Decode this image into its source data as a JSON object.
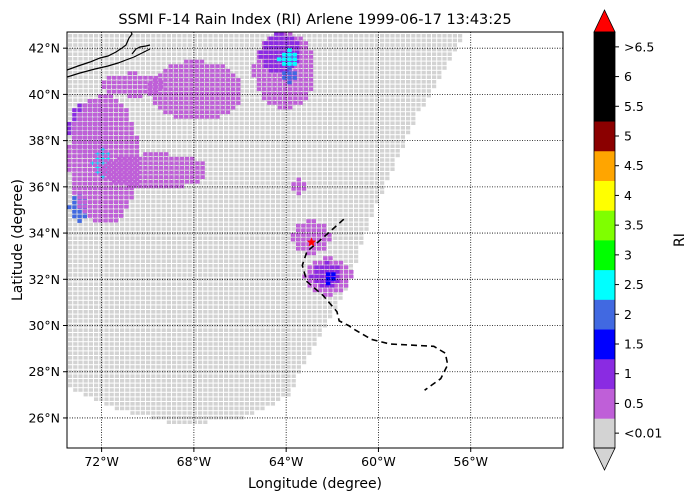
{
  "chart_data": {
    "type": "heatmap",
    "title": "SSMI F-14 Rain Index (RI) Arlene 1999-06-17 13:43:25",
    "xlabel": "Longitude (degree)",
    "ylabel": "Latitude (degree)",
    "xlim": [
      -73.5,
      -52
    ],
    "ylim": [
      24.7,
      42.7
    ],
    "grid": true,
    "x_ticks": [
      {
        "value": -72,
        "label": "72°W"
      },
      {
        "value": -68,
        "label": "68°W"
      },
      {
        "value": -64,
        "label": "64°W"
      },
      {
        "value": -60,
        "label": "60°W"
      },
      {
        "value": -56,
        "label": "56°W"
      }
    ],
    "y_ticks": [
      {
        "value": 26,
        "label": "26°N"
      },
      {
        "value": 28,
        "label": "28°N"
      },
      {
        "value": 30,
        "label": "30°N"
      },
      {
        "value": 32,
        "label": "32°N"
      },
      {
        "value": 34,
        "label": "34°N"
      },
      {
        "value": 36,
        "label": "36°N"
      },
      {
        "value": 38,
        "label": "38°N"
      },
      {
        "value": 40,
        "label": "40°N"
      },
      {
        "value": 42,
        "label": "42°N"
      }
    ],
    "colorbar": {
      "label": "RI",
      "colors": [
        "#d3d3d3",
        "#bf5fd8",
        "#8a2be2",
        "#0000ff",
        "#4169e1",
        "#00ffff",
        "#00ff00",
        "#7fff00",
        "#ffff00",
        "#ffa500",
        "#8b0000",
        "#000000",
        "#000000",
        "#000000"
      ],
      "under_color": "#d3d3d3",
      "over_color": "#ff0000",
      "tick_labels": [
        "<0.01",
        "0.5",
        "1",
        "1.5",
        "2",
        "2.5",
        "3",
        "3.5",
        "4",
        "4.5",
        "5",
        "5.5",
        "6",
        ">6.5"
      ]
    },
    "swath_polygon": [
      [
        -73.5,
        27.4
      ],
      [
        -71.5,
        26.5
      ],
      [
        -69,
        25.8
      ],
      [
        -66,
        26.0
      ],
      [
        -64,
        27.0
      ],
      [
        -63,
        29.0
      ],
      [
        -61.5,
        31.5
      ],
      [
        -60.5,
        34.5
      ],
      [
        -59.5,
        36.8
      ],
      [
        -58.5,
        39.0
      ],
      [
        -57.3,
        41.0
      ],
      [
        -56.3,
        42.7
      ],
      [
        -73.5,
        42.7
      ]
    ],
    "rain_cells": [
      {
        "lon": [
          -73.5,
          -71.7
        ],
        "lat": [
          37.3,
          39.8
        ],
        "ri": 1.2
      },
      {
        "lon": [
          -72.5,
          -71.7
        ],
        "lat": [
          36.5,
          37.7
        ],
        "ri": 2.3
      },
      {
        "lon": [
          -73.5,
          -72.6
        ],
        "lat": [
          34.6,
          35.8
        ],
        "ri": 2.2
      },
      {
        "lon": [
          -73.5,
          -70.5
        ],
        "lat": [
          34.5,
          40.0
        ],
        "ri": 0.4
      },
      {
        "lon": [
          -72.0,
          -69.5
        ],
        "lat": [
          40.0,
          41.0
        ],
        "ri": 0.3
      },
      {
        "lon": [
          -72.0,
          -67.5
        ],
        "lat": [
          36.0,
          37.5
        ],
        "ri": 0.6
      },
      {
        "lon": [
          -70.0,
          -66.0
        ],
        "lat": [
          39.0,
          41.5
        ],
        "ri": 0.3
      },
      {
        "lon": [
          -65.5,
          -62.8
        ],
        "lat": [
          39.5,
          42.7
        ],
        "ri": 0.4
      },
      {
        "lon": [
          -65.2,
          -63.5
        ],
        "lat": [
          41.0,
          42.7
        ],
        "ri": 1.2
      },
      {
        "lon": [
          -64.4,
          -63.6
        ],
        "lat": [
          41.3,
          42.0
        ],
        "ri": 2.7
      },
      {
        "lon": [
          -64.4,
          -63.6
        ],
        "lat": [
          40.6,
          41.2
        ],
        "ri": 2.2
      },
      {
        "lon": [
          -63.3,
          -61.2
        ],
        "lat": [
          31.4,
          33.0
        ],
        "ri": 0.4
      },
      {
        "lon": [
          -63.0,
          -61.7
        ],
        "lat": [
          31.7,
          32.8
        ],
        "ri": 1.2
      },
      {
        "lon": [
          -62.5,
          -61.9
        ],
        "lat": [
          31.9,
          32.5
        ],
        "ri": 1.6
      },
      {
        "lon": [
          -64.0,
          -63.2
        ],
        "lat": [
          35.8,
          36.4
        ],
        "ri": 0.4
      },
      {
        "lon": [
          -63.8,
          -62.2
        ],
        "lat": [
          33.2,
          34.6
        ],
        "ri": 0.3
      }
    ],
    "storm_track": {
      "lon": [
        -61.5,
        -62.4,
        -63.1,
        -63.3,
        -63.1,
        -62.4,
        -61.8,
        -61.7,
        -61.3,
        -61.0,
        -60.3,
        -59.5,
        -58.5,
        -57.6,
        -57.1,
        -57.0,
        -57.3,
        -58.0
      ],
      "lat": [
        34.6,
        33.8,
        33.2,
        32.6,
        31.9,
        31.3,
        30.6,
        30.2,
        30.0,
        29.8,
        29.4,
        29.2,
        29.15,
        29.1,
        28.8,
        28.3,
        27.7,
        27.2
      ]
    },
    "storm_center": {
      "lon": -62.9,
      "lat": 33.6
    }
  }
}
